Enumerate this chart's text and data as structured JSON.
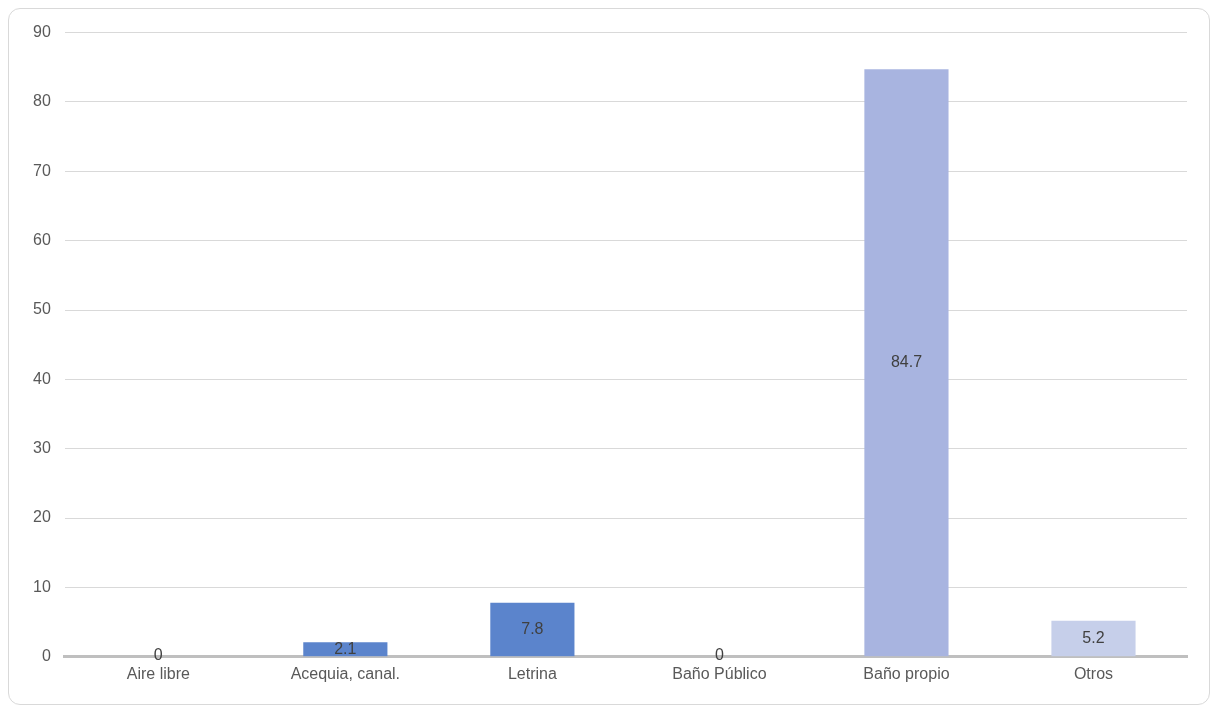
{
  "chart_data": {
    "type": "bar",
    "categories": [
      "Aire libre",
      "Acequia, canal.",
      "Letrina",
      "Baño Público",
      "Baño propio",
      "Otros"
    ],
    "values": [
      0,
      2.1,
      7.8,
      0,
      84.7,
      5.2
    ],
    "colors": [
      "#4a74c8",
      "#5b84cc",
      "#5b84cc",
      "#8fa2d8",
      "#a8b4e0",
      "#c6cfea"
    ],
    "ylim": [
      0,
      90
    ],
    "yticks": [
      0,
      10,
      20,
      30,
      40,
      50,
      60,
      70,
      80,
      90
    ],
    "grid": "y",
    "legend": false,
    "data_labels": true
  }
}
